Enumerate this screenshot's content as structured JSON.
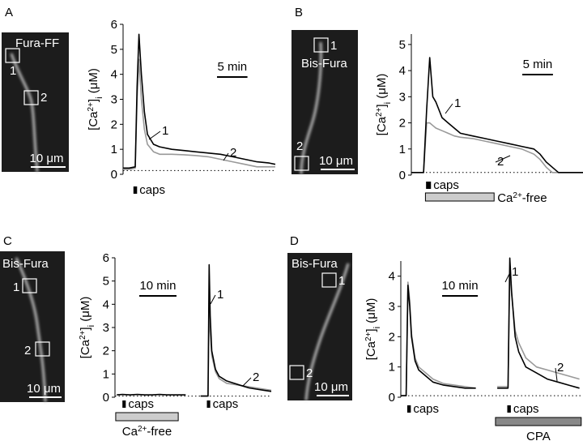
{
  "chart_data": [
    {
      "type": "line",
      "panel": "A",
      "image": {
        "label": "Fura-FF",
        "scale_label": "10 μm"
      },
      "y_label": [
        "[Ca",
        "2+",
        "]",
        "i",
        " (μM)"
      ],
      "x": [
        0,
        1,
        2,
        2.3,
        2.6,
        3,
        3.5,
        4,
        5,
        6,
        8,
        10,
        12,
        14,
        16,
        18,
        20,
        22,
        24,
        25
      ],
      "series": [
        {
          "name": "1",
          "color": "#000000",
          "values": [
            0.25,
            0.25,
            0.3,
            3.5,
            5.6,
            4,
            2.5,
            1.6,
            1.2,
            1.1,
            1.0,
            0.95,
            0.9,
            0.85,
            0.8,
            0.7,
            0.6,
            0.5,
            0.45,
            0.4
          ]
        },
        {
          "name": "2",
          "color": "#999999",
          "values": [
            0.2,
            0.2,
            0.25,
            3,
            4.6,
            3,
            1.8,
            1.2,
            0.9,
            0.8,
            0.8,
            0.78,
            0.75,
            0.7,
            0.6,
            0.5,
            0.4,
            0.3,
            0.3,
            0.3
          ]
        }
      ],
      "xlim": [
        0,
        25
      ],
      "ylim": [
        0,
        6
      ],
      "yticks": [
        0,
        1,
        2,
        3,
        4,
        5,
        6
      ],
      "baseline": 0.15,
      "scale_bar": {
        "label": "5 min",
        "value": 5
      },
      "stimuli": [
        {
          "label": "caps",
          "start": 1.7,
          "end": 2.3
        }
      ],
      "conditions": []
    },
    {
      "type": "line",
      "panel": "B",
      "image": {
        "label": "Bis-Fura",
        "scale_label": "10 μm"
      },
      "y_label": [
        "[Ca",
        "2+",
        "]",
        "i",
        " (μM)"
      ],
      "x": [
        0,
        1,
        2,
        2.5,
        3,
        3.5,
        4,
        5,
        6,
        7,
        8,
        10,
        12,
        14,
        16,
        18,
        20,
        21,
        22,
        23,
        24,
        25,
        26,
        28
      ],
      "series": [
        {
          "name": "1",
          "color": "#000000",
          "values": [
            0.1,
            0.1,
            0.1,
            2.5,
            4.5,
            3,
            2.8,
            2.2,
            2.0,
            1.8,
            1.6,
            1.5,
            1.4,
            1.3,
            1.2,
            1.1,
            1.0,
            0.8,
            0.5,
            0.3,
            0.1,
            0.1,
            0.1,
            0.1
          ]
        },
        {
          "name": "2",
          "color": "#999999",
          "values": [
            0.1,
            0.1,
            0.1,
            2.0,
            2.0,
            1.9,
            1.8,
            1.7,
            1.6,
            1.5,
            1.45,
            1.4,
            1.3,
            1.2,
            1.1,
            1.0,
            0.8,
            0.6,
            0.3,
            0.1,
            0.1,
            0.1,
            0.1,
            0.1
          ]
        }
      ],
      "xlim": [
        0,
        28
      ],
      "ylim": [
        0,
        5.4
      ],
      "yticks": [
        0,
        1,
        2,
        3,
        4,
        5
      ],
      "baseline": 0.1,
      "scale_bar": {
        "label": "5 min",
        "value": 5
      },
      "stimuli": [
        {
          "label": "caps",
          "start": 2.4,
          "end": 3.2
        }
      ],
      "conditions": [
        {
          "label": [
            "Ca",
            "2+",
            "-free"
          ],
          "start": 2.3,
          "end": 13.5,
          "color": "#cccccc"
        }
      ]
    },
    {
      "type": "line",
      "panel": "C",
      "image": {
        "label": "Bis-Fura",
        "scale_label": "10 μm"
      },
      "y_label": [
        "[Ca",
        "2+",
        "]",
        "i",
        " (μM)"
      ],
      "x": [
        0.5,
        2,
        4,
        6,
        8,
        10,
        12,
        14,
        16,
        19,
        20.5,
        23,
        25,
        25.3,
        25.6,
        26,
        27,
        28,
        30,
        32,
        34,
        36,
        38,
        40,
        42
      ],
      "series": [
        {
          "name": "1",
          "color": "#000000",
          "values": [
            0.1,
            0.12,
            0.1,
            0.12,
            0.1,
            0.1,
            0.12,
            0.1,
            0.1,
            0.1,
            null,
            0.05,
            0.05,
            5.7,
            3.5,
            2.0,
            1.2,
            0.9,
            0.7,
            0.6,
            0.5,
            0.4,
            0.35,
            0.3,
            0.25
          ]
        },
        {
          "name": "2",
          "color": "#999999",
          "values": [
            null,
            null,
            null,
            null,
            null,
            null,
            null,
            null,
            null,
            null,
            null,
            0.05,
            0.05,
            3.8,
            2.8,
            1.8,
            1.1,
            0.8,
            0.6,
            0.55,
            0.5,
            0.45,
            0.4,
            0.35,
            0.3
          ]
        }
      ],
      "xlim": [
        0,
        42
      ],
      "ylim": [
        0,
        6
      ],
      "yticks": [
        0,
        1,
        2,
        3,
        4,
        5,
        6
      ],
      "baseline": 0.05,
      "scale_bar": {
        "label": "10 min",
        "value": 10
      },
      "stimuli": [
        {
          "label": "caps",
          "start": 2,
          "end": 2.9
        },
        {
          "label": "caps",
          "start": 24.7,
          "end": 25.6
        }
      ],
      "conditions": [
        {
          "label": [
            "Ca",
            "2+",
            "-free"
          ],
          "start": 0.2,
          "end": 17,
          "color": "#cccccc"
        }
      ]
    },
    {
      "type": "line",
      "panel": "D",
      "image": {
        "label": "Bis-Fura",
        "scale_label": "10 μm"
      },
      "y_label": [
        "[Ca",
        "2+",
        "]",
        "i",
        " (μM)"
      ],
      "x": [
        0,
        1.5,
        2,
        2.5,
        3,
        4,
        5,
        7,
        9,
        12,
        15,
        18,
        21,
        24,
        27,
        29,
        30,
        30.5,
        31,
        32,
        33,
        35,
        38,
        41,
        44,
        47,
        50
      ],
      "series": [
        {
          "name": "1",
          "color": "#000000",
          "values": [
            0.05,
            0.05,
            3.7,
            3.0,
            2.0,
            1.2,
            0.9,
            0.7,
            0.5,
            0.4,
            0.35,
            0.3,
            0.3,
            null,
            0.3,
            0.3,
            0.3,
            4.6,
            3.5,
            2.0,
            1.5,
            1.0,
            0.8,
            0.6,
            0.5,
            0.4,
            0.3
          ]
        },
        {
          "name": "2",
          "color": "#999999",
          "values": [
            0.05,
            0.05,
            3.8,
            3.2,
            2.1,
            1.3,
            1.0,
            0.8,
            0.6,
            0.45,
            0.4,
            0.35,
            0.3,
            null,
            0.35,
            0.35,
            0.35,
            4.2,
            3.4,
            2.2,
            1.8,
            1.3,
            1.0,
            0.9,
            0.8,
            0.7,
            0.6
          ]
        }
      ],
      "xlim": [
        0,
        51
      ],
      "ylim": [
        0,
        4.5
      ],
      "yticks": [
        0,
        1,
        2,
        3,
        4
      ],
      "baseline": 0.05,
      "scale_bar": {
        "label": "10 min",
        "value": 10
      },
      "stimuli": [
        {
          "label": "caps",
          "start": 1.8,
          "end": 2.8
        },
        {
          "label": "caps",
          "start": 29.8,
          "end": 30.8
        }
      ],
      "conditions": [
        {
          "label": [
            "CPA"
          ],
          "start": 26.5,
          "end": 50.5,
          "color": "#888888"
        }
      ]
    }
  ]
}
